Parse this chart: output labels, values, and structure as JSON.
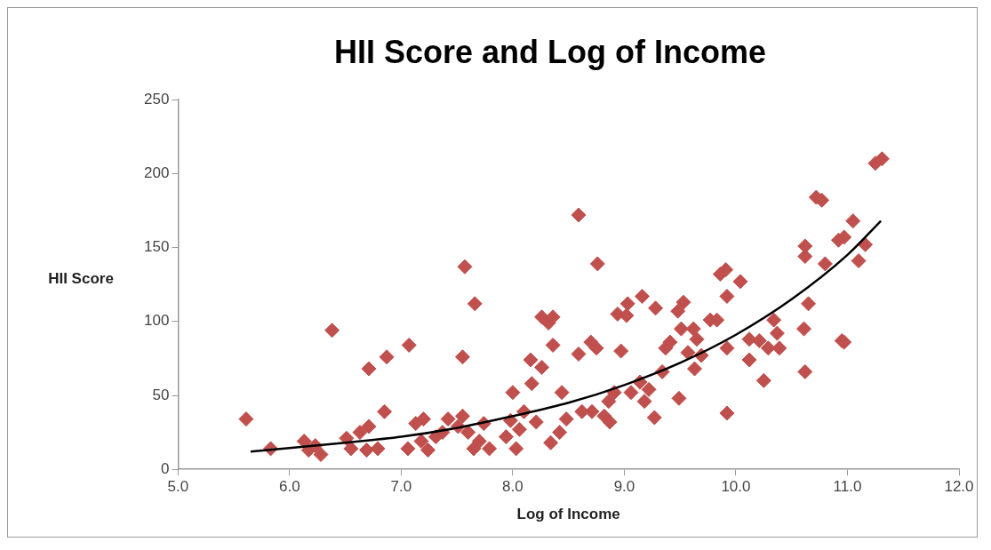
{
  "chart_data": {
    "type": "scatter",
    "title": "HII Score and Log of Income",
    "xlabel": "Log of Income",
    "ylabel": "HII Score",
    "xlim": [
      5,
      12
    ],
    "xticks": [
      {
        "value": 5,
        "label": "5.0"
      },
      {
        "value": 6,
        "label": "6.0"
      },
      {
        "value": 7,
        "label": "7.0"
      },
      {
        "value": 8,
        "label": "8.0"
      },
      {
        "value": 9,
        "label": "9.0"
      },
      {
        "value": 10,
        "label": "10.0"
      },
      {
        "value": 11,
        "label": "11.0"
      },
      {
        "value": 12,
        "label": "12.0"
      }
    ],
    "ylim": [
      0,
      250
    ],
    "yticks": [
      0,
      50,
      100,
      150,
      200,
      250
    ],
    "grid": false,
    "legend": false,
    "marker": "diamond",
    "series": [
      {
        "color": "#c0504d",
        "x": [
          5.61,
          5.83,
          6.38,
          6.13,
          6.17,
          6.28,
          6.23,
          6.51,
          6.55,
          6.63,
          6.71,
          6.71,
          6.87,
          6.85,
          6.79,
          6.69,
          7.07,
          7.06,
          7.13,
          7.2,
          7.18,
          7.24,
          7.31,
          7.37,
          7.42,
          7.51,
          7.55,
          7.55,
          7.57,
          7.6,
          7.65,
          7.7,
          7.74,
          7.79,
          7.66,
          7.94,
          7.98,
          8.0,
          8.03,
          8.06,
          8.1,
          8.16,
          8.17,
          8.21,
          8.26,
          8.26,
          8.32,
          8.36,
          8.36,
          8.34,
          8.42,
          8.44,
          8.48,
          8.59,
          8.59,
          8.62,
          8.7,
          8.75,
          8.76,
          8.71,
          8.82,
          8.86,
          8.87,
          8.91,
          8.94,
          8.97,
          9.02,
          9.03,
          9.06,
          9.16,
          9.14,
          9.18,
          9.22,
          9.28,
          9.27,
          9.34,
          9.37,
          9.41,
          9.48,
          9.51,
          9.53,
          9.49,
          9.57,
          9.62,
          9.65,
          9.63,
          9.69,
          9.77,
          9.83,
          9.86,
          9.91,
          9.92,
          9.92,
          9.92,
          10.04,
          10.12,
          10.12,
          10.21,
          10.25,
          10.29,
          10.34,
          10.37,
          10.39,
          10.62,
          10.62,
          10.65,
          10.61,
          10.62,
          10.72,
          10.77,
          10.8,
          10.92,
          10.97,
          10.95,
          10.97,
          11.05,
          11.1,
          11.16,
          11.25,
          11.31
        ],
        "values": [
          34,
          14,
          94,
          19,
          13,
          10,
          16,
          21,
          14,
          25,
          29,
          68,
          76,
          39,
          14,
          13,
          84,
          14,
          31,
          34,
          19,
          13,
          22,
          25,
          34,
          29,
          36,
          76,
          137,
          25,
          14,
          19,
          31,
          14,
          112,
          22,
          33,
          52,
          14,
          27,
          39,
          74,
          58,
          32,
          69,
          103,
          99,
          103,
          84,
          18,
          25,
          52,
          34,
          172,
          78,
          39,
          86,
          82,
          139,
          39,
          36,
          46,
          32,
          52,
          105,
          80,
          104,
          112,
          52,
          117,
          59,
          46,
          54,
          109,
          35,
          66,
          82,
          86,
          107,
          95,
          113,
          48,
          79,
          95,
          88,
          68,
          77,
          101,
          101,
          132,
          135,
          117,
          82,
          38,
          127,
          88,
          74,
          87,
          60,
          82,
          101,
          92,
          82,
          151,
          144,
          112,
          95,
          66,
          184,
          182,
          139,
          155,
          157,
          87,
          86,
          168,
          141,
          152,
          207,
          210
        ]
      },
      {
        "type": "line",
        "color": "#000000",
        "marker": "none",
        "x": [
          5.65,
          6.5,
          7,
          7.5,
          8,
          8.5,
          9,
          9.5,
          10,
          10.5,
          11,
          11.3
        ],
        "values": [
          12,
          18,
          22,
          28,
          36,
          45,
          57,
          72,
          91,
          115,
          145,
          168
        ]
      }
    ]
  }
}
